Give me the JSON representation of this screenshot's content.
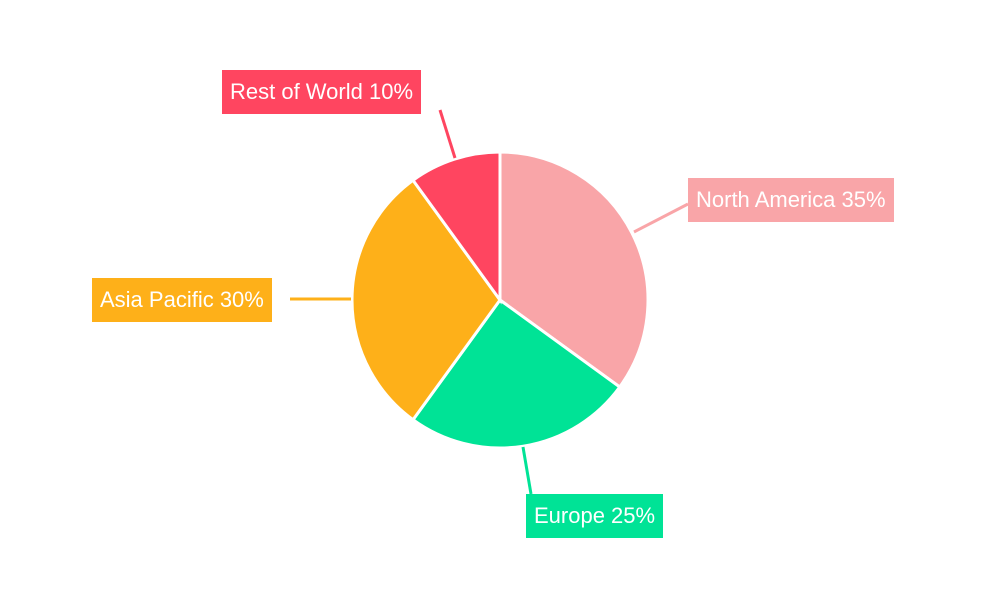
{
  "chart_data": {
    "type": "pie",
    "categories": [
      "North America",
      "Europe",
      "Asia Pacific",
      "Rest of World"
    ],
    "values": [
      35,
      25,
      30,
      10
    ],
    "labels": [
      "North America 35%",
      "Europe 25%",
      "Asia Pacific 30%",
      "Rest of World 10%"
    ],
    "colors": [
      "#F9A5A8",
      "#00E396",
      "#FEB019",
      "#FF4560"
    ],
    "start_angle": "top, clockwise",
    "legend": "none"
  }
}
